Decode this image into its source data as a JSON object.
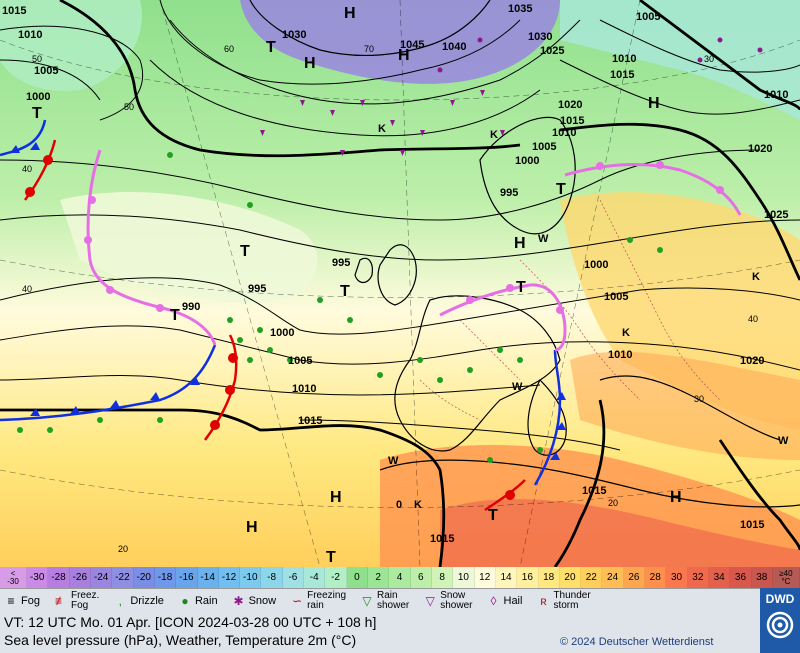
{
  "map": {
    "pressure_labels": [
      "1015",
      "1010",
      "1005",
      "1000",
      "1030",
      "1045",
      "1040",
      "1035",
      "1030",
      "1025",
      "1020",
      "1015",
      "1010",
      "1005",
      "1000",
      "995",
      "1005",
      "1010",
      "1015",
      "1020",
      "1025",
      "995",
      "995",
      "1000",
      "990",
      "1000",
      "1005",
      "1010",
      "1015",
      "1005",
      "1010",
      "1015",
      "1015",
      "1020",
      "1010",
      "1015"
    ],
    "center_labels": [
      "H",
      "T",
      "H",
      "H",
      "T",
      "T",
      "T",
      "H",
      "H",
      "T",
      "T",
      "T",
      "H",
      "H",
      "T",
      "H",
      "T",
      "K",
      "K",
      "K",
      "W",
      "W",
      "W",
      "W",
      "K",
      "0",
      "K"
    ],
    "gradient_labels": [
      "60",
      "50",
      "70",
      "40",
      "30",
      "40",
      "20",
      "20",
      "30",
      "40",
      "50"
    ]
  },
  "temperature_scale": {
    "first": "<\n-30",
    "steps": [
      "-30",
      "-28",
      "-26",
      "-24",
      "-22",
      "-20",
      "-18",
      "-16",
      "-14",
      "-12",
      "-10",
      "-8",
      "-6",
      "-4",
      "-2",
      "0",
      "2",
      "4",
      "6",
      "8",
      "10",
      "12",
      "14",
      "16",
      "18",
      "20",
      "22",
      "24",
      "26",
      "28",
      "30",
      "32",
      "34",
      "36",
      "38"
    ],
    "last": "≥40\n°C",
    "colors": [
      "#c98be6",
      "#b57ee0",
      "#a680dc",
      "#9a86e0",
      "#8e8ee3",
      "#7b8ee6",
      "#6f98ea",
      "#6aa5ec",
      "#6ab2ee",
      "#70bff0",
      "#7ccbee",
      "#8dd6ea",
      "#9fe0e4",
      "#a8e8d8",
      "#b2eec6",
      "#8fe08d",
      "#9ce596",
      "#abea9f",
      "#bdefaa",
      "#d0f3b8",
      "#eef8d8",
      "#fffbdd",
      "#fff6bd",
      "#fff09e",
      "#ffe880",
      "#ffde6a",
      "#ffcf5c",
      "#ffbd55",
      "#ffa650",
      "#ff8f4d",
      "#f9784d",
      "#ef6a4d",
      "#e4604d",
      "#d8584d",
      "#c9564f"
    ]
  },
  "legend": {
    "fog": "Fog",
    "freezing_fog": "Freez.\nFog",
    "drizzle": "Drizzle",
    "rain": "Rain",
    "snow": "Snow",
    "freezing_rain": "Freezing\nrain",
    "rain_shower": "Rain\nshower",
    "snow_shower": "Snow\nshower",
    "hail": "Hail",
    "thunderstorm": "Thunder\nstorm"
  },
  "footer": {
    "valid_time": "VT: 12 UTC Mo.  01 Apr. [ICON 2024-03-28  00 UTC + 108 h]",
    "description": "Sea level pressure (hPa), Weather, Temperature 2m (°C)",
    "copyright": "© 2024 Deutscher Wetterdienst",
    "logo_text": "DWD"
  }
}
